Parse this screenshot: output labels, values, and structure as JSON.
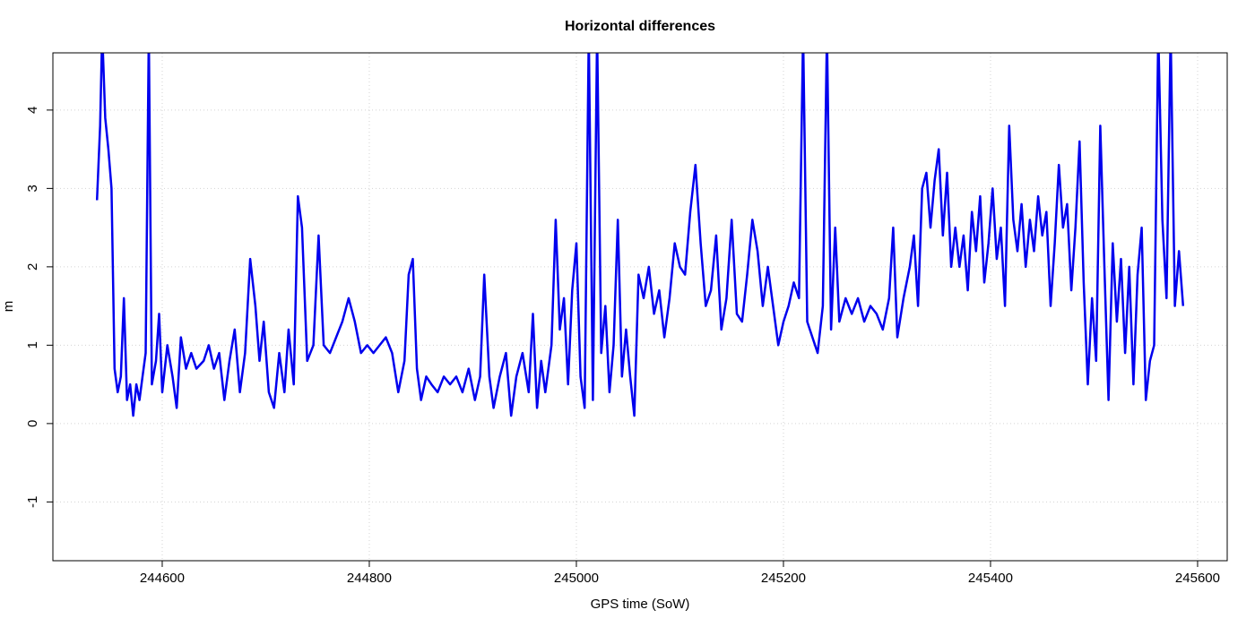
{
  "chart_data": {
    "type": "line",
    "title": "Horizontal differences",
    "x_label": "GPS time (SoW)",
    "y_label": "m",
    "color": "#0000ee",
    "grid": true,
    "xlim": [
      244494.4,
      245628.6
    ],
    "ylim": [
      -1.75,
      4.73
    ],
    "xticks": [
      244600,
      244800,
      245000,
      245200,
      245400,
      245600
    ],
    "yticks": [
      -1,
      0,
      1,
      2,
      3,
      4
    ],
    "x": [
      244537,
      244540,
      244542,
      244545,
      244548,
      244551,
      244554,
      244557,
      244560,
      244563,
      244566,
      244569,
      244572,
      244575,
      244578,
      244581,
      244584,
      244587,
      244590,
      244594,
      244597,
      244600,
      244605,
      244610,
      244614,
      244618,
      244623,
      244628,
      244633,
      244640,
      244645,
      244650,
      244655,
      244660,
      244665,
      244670,
      244675,
      244680,
      244685,
      244690,
      244694,
      244698,
      244703,
      244708,
      244713,
      244718,
      244722,
      244727,
      244731,
      244735,
      244740,
      244746,
      244751,
      244756,
      244762,
      244768,
      244774,
      244780,
      244786,
      244792,
      244798,
      244804,
      244810,
      244816,
      244822,
      244828,
      244834,
      244838,
      244842,
      244846,
      244850,
      244855,
      244860,
      244866,
      244872,
      244878,
      244884,
      244890,
      244896,
      244902,
      244907,
      244911,
      244916,
      244920,
      244926,
      244932,
      244937,
      244942,
      244948,
      244954,
      244958,
      244962,
      244966,
      244970,
      244976,
      244980,
      244984,
      244988,
      244992,
      244996,
      245000,
      245004,
      245008,
      245012,
      245016,
      245020,
      245024,
      245028,
      245032,
      245036,
      245040,
      245044,
      245048,
      245052,
      245056,
      245060,
      245065,
      245070,
      245075,
      245080,
      245085,
      245090,
      245095,
      245100,
      245105,
      245110,
      245115,
      245120,
      245125,
      245130,
      245135,
      245140,
      245145,
      245150,
      245155,
      245160,
      245165,
      245170,
      245175,
      245180,
      245185,
      245190,
      245195,
      245200,
      245205,
      245210,
      245215,
      245219,
      245223,
      245228,
      245233,
      245238,
      245242,
      245246,
      245250,
      245254,
      245260,
      245266,
      245272,
      245278,
      245284,
      245290,
      245296,
      245302,
      245306,
      245310,
      245316,
      245322,
      245326,
      245330,
      245334,
      245338,
      245342,
      245346,
      245350,
      245354,
      245358,
      245362,
      245366,
      245370,
      245374,
      245378,
      245382,
      245386,
      245390,
      245394,
      245398,
      245402,
      245406,
      245410,
      245414,
      245418,
      245422,
      245426,
      245430,
      245434,
      245438,
      245442,
      245446,
      245450,
      245454,
      245458,
      245462,
      245466,
      245470,
      245474,
      245478,
      245482,
      245486,
      245490,
      245494,
      245498,
      245502,
      245506,
      245510,
      245514,
      245518,
      245522,
      245526,
      245530,
      245534,
      245538,
      245542,
      245546,
      245550,
      245554,
      245558,
      245562,
      245566,
      245570,
      245574,
      245578,
      245582,
      245586
    ],
    "values": [
      2.85,
      3.8,
      5.0,
      3.9,
      3.5,
      3.0,
      0.7,
      0.4,
      0.6,
      1.6,
      0.3,
      0.5,
      0.1,
      0.5,
      0.3,
      0.6,
      0.9,
      5.0,
      0.5,
      0.8,
      1.4,
      0.4,
      1.0,
      0.6,
      0.2,
      1.1,
      0.7,
      0.9,
      0.7,
      0.8,
      1.0,
      0.7,
      0.9,
      0.3,
      0.8,
      1.2,
      0.4,
      0.9,
      2.1,
      1.5,
      0.8,
      1.3,
      0.4,
      0.2,
      0.9,
      0.4,
      1.2,
      0.5,
      2.9,
      2.5,
      0.8,
      1.0,
      2.4,
      1.0,
      0.9,
      1.1,
      1.3,
      1.6,
      1.3,
      0.9,
      1.0,
      0.9,
      1.0,
      1.1,
      0.9,
      0.4,
      0.8,
      1.9,
      2.1,
      0.7,
      0.3,
      0.6,
      0.5,
      0.4,
      0.6,
      0.5,
      0.6,
      0.4,
      0.7,
      0.3,
      0.6,
      1.9,
      0.6,
      0.2,
      0.6,
      0.9,
      0.1,
      0.6,
      0.9,
      0.4,
      1.4,
      0.2,
      0.8,
      0.4,
      1.0,
      2.6,
      1.2,
      1.6,
      0.5,
      1.7,
      2.3,
      0.6,
      0.2,
      5.0,
      0.3,
      5.0,
      0.9,
      1.5,
      0.4,
      1.0,
      2.6,
      0.6,
      1.2,
      0.6,
      0.1,
      1.9,
      1.6,
      2.0,
      1.4,
      1.7,
      1.1,
      1.6,
      2.3,
      2.0,
      1.9,
      2.7,
      3.3,
      2.3,
      1.5,
      1.7,
      2.4,
      1.2,
      1.6,
      2.6,
      1.4,
      1.3,
      1.9,
      2.6,
      2.2,
      1.5,
      2.0,
      1.5,
      1.0,
      1.3,
      1.5,
      1.8,
      1.6,
      5.0,
      1.3,
      1.1,
      0.9,
      1.5,
      5.0,
      1.2,
      2.5,
      1.3,
      1.6,
      1.4,
      1.6,
      1.3,
      1.5,
      1.4,
      1.2,
      1.6,
      2.5,
      1.1,
      1.6,
      2.0,
      2.4,
      1.5,
      3.0,
      3.2,
      2.5,
      3.1,
      3.5,
      2.4,
      3.2,
      2.0,
      2.5,
      2.0,
      2.4,
      1.7,
      2.7,
      2.2,
      2.9,
      1.8,
      2.3,
      3.0,
      2.1,
      2.5,
      1.5,
      3.8,
      2.6,
      2.2,
      2.8,
      2.0,
      2.6,
      2.2,
      2.9,
      2.4,
      2.7,
      1.5,
      2.3,
      3.3,
      2.5,
      2.8,
      1.7,
      2.5,
      3.6,
      1.8,
      0.5,
      1.6,
      0.8,
      3.8,
      2.0,
      0.3,
      2.3,
      1.3,
      2.1,
      0.9,
      2.0,
      0.5,
      1.9,
      2.5,
      0.3,
      0.8,
      1.0,
      5.0,
      2.6,
      1.6,
      5.0,
      1.5,
      2.2,
      1.5
    ]
  }
}
